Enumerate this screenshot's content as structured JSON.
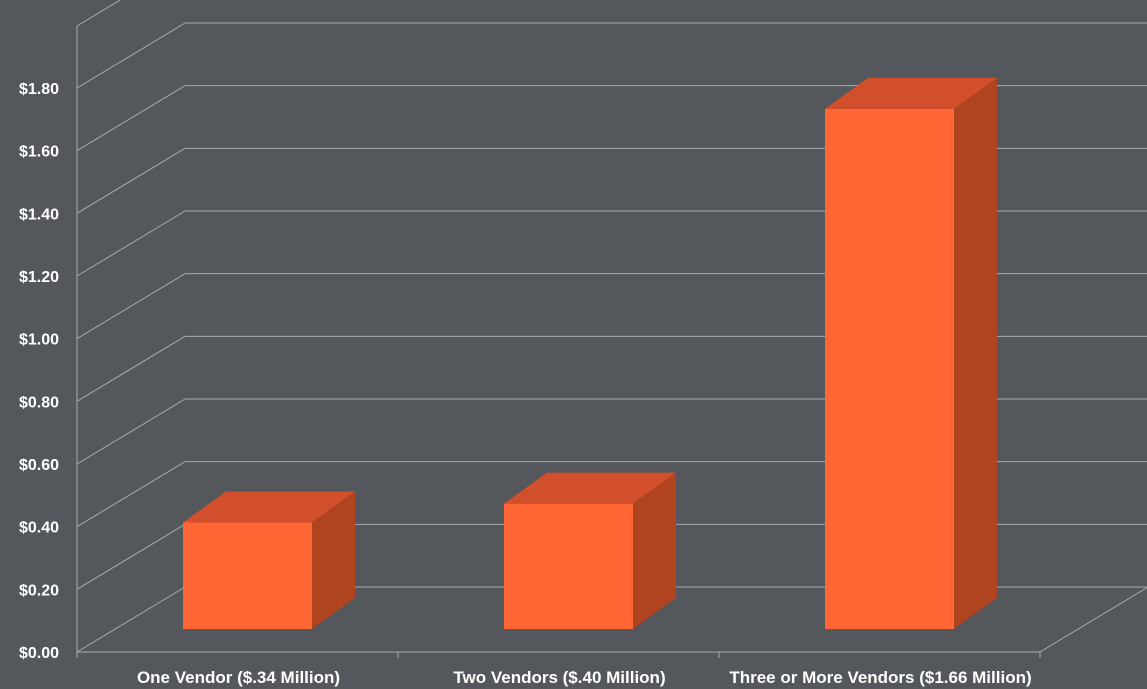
{
  "chart_data": {
    "type": "bar",
    "categories": [
      "One Vendor ($.34 Million)",
      "Two Vendors ($.40 Million)",
      "Three or More Vendors ($1.66 Million)"
    ],
    "values": [
      0.34,
      0.4,
      1.66
    ],
    "ylim": [
      0,
      1.8
    ],
    "yticks": [
      "$0.00",
      "$0.20",
      "$0.40",
      "$0.60",
      "$0.80",
      "$1.00",
      "$1.20",
      "$1.40",
      "$1.60",
      "$1.80"
    ],
    "title": "",
    "xlabel": "",
    "ylabel": "",
    "grid": true,
    "style": "3d",
    "colors": {
      "background": "#54575c",
      "grid": "#a9abae",
      "bar_front": "#ff6633",
      "bar_top": "#d24f2b",
      "bar_side": "#b04320",
      "shadow": "#2e3033"
    }
  }
}
